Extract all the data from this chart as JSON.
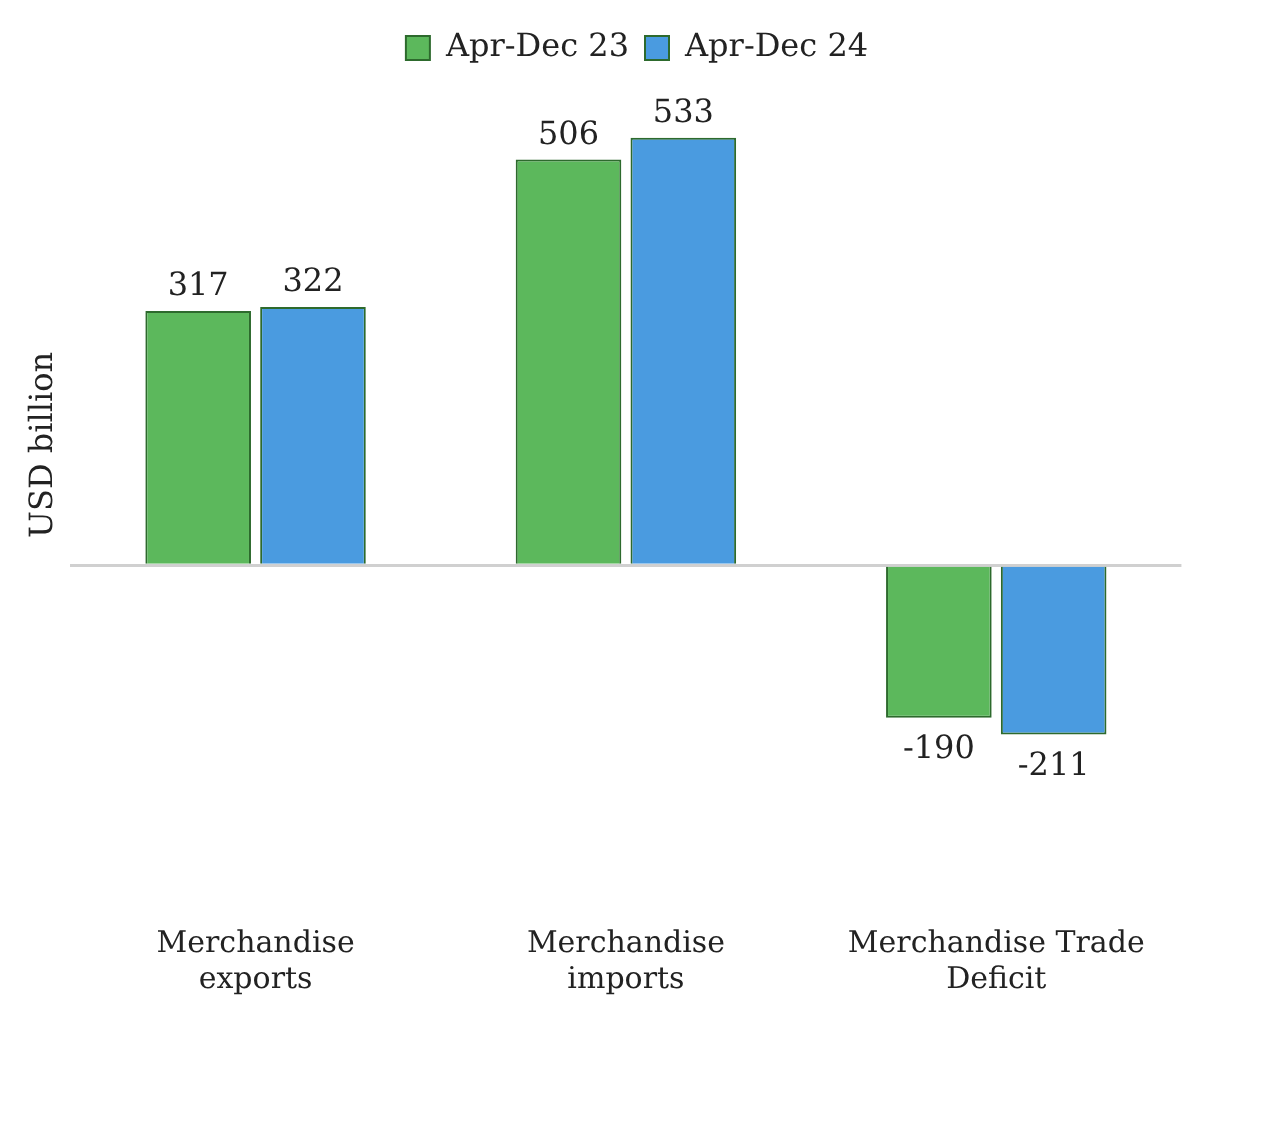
{
  "chart_data": {
    "type": "bar",
    "ylabel": "USD billion",
    "categories": [
      "Merchandise exports",
      "Merchandise imports",
      "Merchandise Trade Deficit"
    ],
    "series": [
      {
        "name": "Apr-Dec 23",
        "color": "#5cb85c",
        "values": [
          317,
          506,
          -190
        ]
      },
      {
        "name": "Apr-Dec 24",
        "color": "#4a9be0",
        "values": [
          322,
          533,
          -211
        ]
      }
    ],
    "data_labels": true,
    "legend": "top",
    "grid": false
  }
}
